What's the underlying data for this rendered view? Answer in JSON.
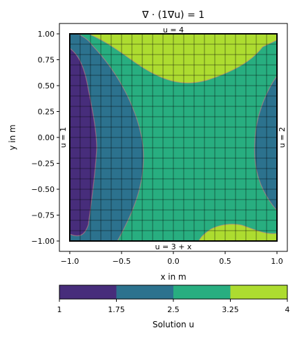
{
  "chart_data": {
    "type": "heatmap",
    "title": "∇ · (1∇u) = 1",
    "xlabel": "x in m",
    "ylabel": "y in m",
    "xlim": [
      -1.1,
      1.1
    ],
    "ylim": [
      -1.1,
      1.1
    ],
    "x_ticks": [
      -1.0,
      -0.5,
      0.0,
      0.5,
      1.0
    ],
    "x_tick_labels": [
      "−1.0",
      "−0.5",
      "0.0",
      "0.5",
      "1.0"
    ],
    "y_ticks": [
      1.0,
      0.75,
      0.5,
      0.25,
      0.0,
      -0.25,
      -0.5,
      -0.75,
      -1.0
    ],
    "y_tick_labels": [
      "1.00",
      "0.75",
      "0.50",
      "0.25",
      "0.00",
      "−0.25",
      "−0.50",
      "−0.75",
      "−1.00"
    ],
    "boundary_conditions": {
      "top": "u = 4",
      "bottom": "u = 3 + x",
      "left": "u = 1",
      "right": "u = 2"
    },
    "mesh": {
      "cells_x": 20,
      "cells_y": 20,
      "color": "#000000"
    },
    "contour_levels": [
      1,
      1.75,
      2.5,
      3.25,
      4
    ],
    "level_colors": [
      "#472d7b",
      "#2c728e",
      "#28ae80",
      "#addc30"
    ],
    "colorbar": {
      "label": "Solution u",
      "ticks": [
        1,
        1.75,
        2.5,
        3.25,
        4
      ],
      "tick_labels": [
        "1",
        "1.75",
        "2.5",
        "3.25",
        "4"
      ],
      "orientation": "horizontal"
    }
  }
}
